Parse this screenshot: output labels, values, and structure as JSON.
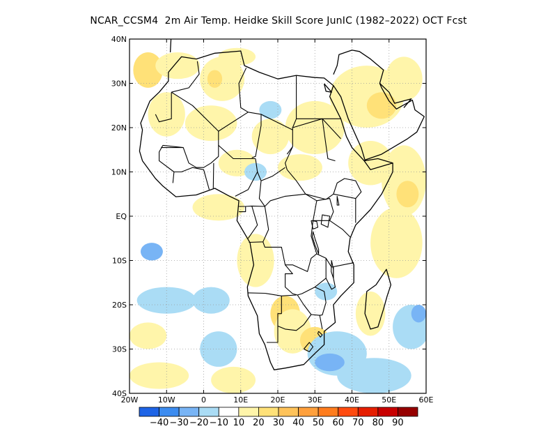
{
  "title": "NCAR_CCSM4  2m Air Temp. Heidke Skill Score JunIC (1982–2022) OCT Fcst",
  "map": {
    "lon_range": [
      -20,
      60
    ],
    "lat_range": [
      -40,
      40
    ],
    "lon_ticks": [
      {
        "value": -20,
        "label": "20W"
      },
      {
        "value": -10,
        "label": "10W"
      },
      {
        "value": 0,
        "label": "0"
      },
      {
        "value": 10,
        "label": "10E"
      },
      {
        "value": 20,
        "label": "20E"
      },
      {
        "value": 30,
        "label": "30E"
      },
      {
        "value": 40,
        "label": "40E"
      },
      {
        "value": 50,
        "label": "50E"
      },
      {
        "value": 60,
        "label": "60E"
      }
    ],
    "lat_ticks": [
      {
        "value": 40,
        "label": "40N"
      },
      {
        "value": 30,
        "label": "30N"
      },
      {
        "value": 20,
        "label": "20N"
      },
      {
        "value": 10,
        "label": "10N"
      },
      {
        "value": 0,
        "label": "EQ"
      },
      {
        "value": -10,
        "label": "10S"
      },
      {
        "value": -20,
        "label": "20S"
      },
      {
        "value": -30,
        "label": "30S"
      },
      {
        "value": -40,
        "label": "40S"
      }
    ],
    "gridlines": "dotted",
    "coastline_color": "#000000"
  },
  "colorbar": {
    "colors": [
      "#1e64e6",
      "#3c8cf0",
      "#78b4f5",
      "#aadcf5",
      "#ffffff",
      "#fff5aa",
      "#ffe178",
      "#ffc35a",
      "#ffa03c",
      "#ff7d1e",
      "#ff4b0f",
      "#e61e00",
      "#c80000",
      "#960000"
    ],
    "labels": [
      "−40",
      "−30",
      "−20",
      "−10",
      "10",
      "20",
      "30",
      "40",
      "50",
      "60",
      "70",
      "80",
      "90"
    ]
  },
  "fields": {
    "positive_light": "#fff5aa",
    "positive_mid": "#ffe178",
    "positive_strong": "#ffc35a",
    "negative_light": "#aadcf5",
    "negative_mid": "#78b4f5"
  },
  "field_patches": [
    {
      "lon": -15,
      "lat": 33,
      "rx": 4,
      "ry": 4,
      "level": "positive_mid"
    },
    {
      "lon": -7,
      "lat": 34,
      "rx": 6,
      "ry": 3,
      "level": "positive_light"
    },
    {
      "lon": 5,
      "lat": 31,
      "rx": 6,
      "ry": 5,
      "level": "positive_light"
    },
    {
      "lon": 3,
      "lat": 31,
      "rx": 2,
      "ry": 2,
      "level": "positive_mid"
    },
    {
      "lon": -10,
      "lat": 23,
      "rx": 5,
      "ry": 5,
      "level": "positive_light"
    },
    {
      "lon": 2,
      "lat": 21,
      "rx": 7,
      "ry": 4,
      "level": "positive_light"
    },
    {
      "lon": 18,
      "lat": 18,
      "rx": 5,
      "ry": 4,
      "level": "positive_light"
    },
    {
      "lon": 30,
      "lat": 20,
      "rx": 8,
      "ry": 6,
      "level": "positive_light"
    },
    {
      "lon": 44,
      "lat": 27,
      "rx": 10,
      "ry": 7,
      "level": "positive_light"
    },
    {
      "lon": 48,
      "lat": 25,
      "rx": 4,
      "ry": 3,
      "level": "positive_mid"
    },
    {
      "lon": 54,
      "lat": 31,
      "rx": 5,
      "ry": 5,
      "level": "positive_light"
    },
    {
      "lon": 45,
      "lat": 12,
      "rx": 6,
      "ry": 5,
      "level": "positive_light"
    },
    {
      "lon": 54,
      "lat": 8,
      "rx": 6,
      "ry": 8,
      "level": "positive_light"
    },
    {
      "lon": 55,
      "lat": 5,
      "rx": 3,
      "ry": 3,
      "level": "positive_mid"
    },
    {
      "lon": 52,
      "lat": -6,
      "rx": 7,
      "ry": 8,
      "level": "positive_light"
    },
    {
      "lon": 9,
      "lat": 12,
      "rx": 5,
      "ry": 3,
      "level": "positive_light"
    },
    {
      "lon": 26,
      "lat": 11,
      "rx": 6,
      "ry": 3,
      "level": "positive_light"
    },
    {
      "lon": 4,
      "lat": 2,
      "rx": 7,
      "ry": 3,
      "level": "positive_light"
    },
    {
      "lon": 14,
      "lat": -10,
      "rx": 5,
      "ry": 6,
      "level": "positive_light"
    },
    {
      "lon": 22,
      "lat": -22,
      "rx": 4,
      "ry": 4,
      "level": "positive_mid"
    },
    {
      "lon": 24,
      "lat": -26,
      "rx": 5,
      "ry": 5,
      "level": "positive_light"
    },
    {
      "lon": 30,
      "lat": -28,
      "rx": 4,
      "ry": 3,
      "level": "positive_mid"
    },
    {
      "lon": -15,
      "lat": -27,
      "rx": 5,
      "ry": 3,
      "level": "positive_light"
    },
    {
      "lon": -12,
      "lat": -36,
      "rx": 8,
      "ry": 3,
      "level": "positive_light"
    },
    {
      "lon": 8,
      "lat": -37,
      "rx": 6,
      "ry": 3,
      "level": "positive_light"
    },
    {
      "lon": 45,
      "lat": -22,
      "rx": 4,
      "ry": 5,
      "level": "positive_light"
    },
    {
      "lon": 9,
      "lat": 36,
      "rx": 5,
      "ry": 2,
      "level": "positive_light"
    },
    {
      "lon": -10,
      "lat": -19,
      "rx": 8,
      "ry": 3,
      "level": "negative_light"
    },
    {
      "lon": -14,
      "lat": -8,
      "rx": 3,
      "ry": 2,
      "level": "negative_mid"
    },
    {
      "lon": 2,
      "lat": -19,
      "rx": 5,
      "ry": 3,
      "level": "negative_light"
    },
    {
      "lon": 4,
      "lat": -30,
      "rx": 5,
      "ry": 4,
      "level": "negative_light"
    },
    {
      "lon": 36,
      "lat": -31,
      "rx": 8,
      "ry": 5,
      "level": "negative_light"
    },
    {
      "lon": 34,
      "lat": -33,
      "rx": 4,
      "ry": 2,
      "level": "negative_mid"
    },
    {
      "lon": 46,
      "lat": -36,
      "rx": 10,
      "ry": 4,
      "level": "negative_light"
    },
    {
      "lon": 56,
      "lat": -25,
      "rx": 5,
      "ry": 5,
      "level": "negative_light"
    },
    {
      "lon": 58,
      "lat": -22,
      "rx": 2,
      "ry": 2,
      "level": "negative_mid"
    },
    {
      "lon": 18,
      "lat": 24,
      "rx": 3,
      "ry": 2,
      "level": "negative_light"
    },
    {
      "lon": 14,
      "lat": 10,
      "rx": 3,
      "ry": 2,
      "level": "negative_light"
    },
    {
      "lon": 33,
      "lat": -17,
      "rx": 3,
      "ry": 2,
      "level": "negative_light"
    }
  ],
  "land_outline": [
    [
      -6,
      36
    ],
    [
      -2,
      35.5
    ],
    [
      3,
      36.8
    ],
    [
      10,
      37.3
    ],
    [
      11,
      34
    ],
    [
      15,
      32.5
    ],
    [
      20,
      31
    ],
    [
      25,
      31.8
    ],
    [
      30,
      31.3
    ],
    [
      32.5,
      31.2
    ],
    [
      35,
      29.5
    ],
    [
      34,
      27
    ],
    [
      37,
      22
    ],
    [
      38.5,
      18
    ],
    [
      40,
      15.5
    ],
    [
      43.3,
      12.5
    ],
    [
      45,
      10.5
    ],
    [
      51,
      12
    ],
    [
      51,
      10
    ],
    [
      48,
      5
    ],
    [
      45,
      1.5
    ],
    [
      41,
      -2
    ],
    [
      39.5,
      -5
    ],
    [
      39,
      -8
    ],
    [
      40.5,
      -11
    ],
    [
      40.5,
      -15
    ],
    [
      37,
      -18
    ],
    [
      35,
      -20
    ],
    [
      35.5,
      -24
    ],
    [
      32.5,
      -26
    ],
    [
      32.5,
      -29
    ],
    [
      30,
      -31
    ],
    [
      27,
      -33.5
    ],
    [
      22,
      -34.3
    ],
    [
      19,
      -34.7
    ],
    [
      18,
      -33
    ],
    [
      16.5,
      -29
    ],
    [
      15,
      -26.5
    ],
    [
      14.5,
      -22.5
    ],
    [
      12,
      -18
    ],
    [
      11.8,
      -16
    ],
    [
      13.5,
      -11
    ],
    [
      12.5,
      -6
    ],
    [
      9,
      -1
    ],
    [
      9.5,
      3.5
    ],
    [
      7,
      4.5
    ],
    [
      3,
      6.3
    ],
    [
      -2,
      4.8
    ],
    [
      -7.5,
      4.4
    ],
    [
      -11,
      6.8
    ],
    [
      -13,
      8.5
    ],
    [
      -16.5,
      12.5
    ],
    [
      -17.3,
      14.7
    ],
    [
      -16.5,
      19.5
    ],
    [
      -17,
      21
    ],
    [
      -14.5,
      26
    ],
    [
      -12,
      28
    ],
    [
      -9.5,
      30.5
    ],
    [
      -9.5,
      32.5
    ],
    [
      -6,
      36
    ]
  ],
  "madagascar": [
    [
      49.3,
      -12
    ],
    [
      50.5,
      -15.5
    ],
    [
      49.5,
      -18
    ],
    [
      48.5,
      -21
    ],
    [
      47,
      -25
    ],
    [
      45,
      -25.5
    ],
    [
      43.5,
      -22
    ],
    [
      44,
      -17
    ],
    [
      46.5,
      -15.5
    ],
    [
      49.3,
      -12
    ]
  ],
  "arabia": [
    [
      35,
      29.5
    ],
    [
      37,
      27
    ],
    [
      39,
      22
    ],
    [
      42.5,
      15.5
    ],
    [
      43.5,
      12.7
    ],
    [
      48,
      14
    ],
    [
      52,
      16
    ],
    [
      55,
      17.5
    ],
    [
      57.5,
      19
    ],
    [
      59.5,
      22.5
    ],
    [
      57,
      24
    ],
    [
      56.3,
      26.2
    ],
    [
      52,
      24.2
    ],
    [
      50,
      26
    ],
    [
      48,
      29
    ],
    [
      47.5,
      30
    ],
    [
      48.5,
      33
    ],
    [
      45,
      35.5
    ],
    [
      42,
      37.2
    ],
    [
      40,
      37.5
    ],
    [
      36.5,
      36.5
    ],
    [
      36,
      34
    ],
    [
      35,
      32
    ]
  ],
  "europe": [
    [
      -9,
      37
    ],
    [
      -8.8,
      40
    ],
    [
      -9,
      43
    ],
    [
      -4,
      43.5
    ],
    [
      -2,
      43.4
    ],
    [
      0,
      40
    ]
  ],
  "borders": [
    [
      [
        -8.7,
        28
      ],
      [
        -4,
        29
      ],
      [
        -1.2,
        32.1
      ],
      [
        -1.7,
        35
      ]
    ],
    [
      [
        -8.7,
        28
      ],
      [
        -8.7,
        22
      ],
      [
        -12,
        21.3
      ],
      [
        -13,
        23
      ]
    ],
    [
      [
        -8.7,
        28
      ],
      [
        -3,
        25
      ],
      [
        4,
        19.2
      ],
      [
        12,
        23.5
      ]
    ],
    [
      [
        9.5,
        30
      ],
      [
        10,
        24.5
      ],
      [
        12,
        23.5
      ]
    ],
    [
      [
        9.5,
        30
      ],
      [
        11.5,
        33.5
      ]
    ],
    [
      [
        25,
        31.8
      ],
      [
        25,
        22
      ],
      [
        36.9,
        22
      ]
    ],
    [
      [
        25,
        22
      ],
      [
        24,
        20
      ],
      [
        24,
        15.7
      ],
      [
        22.5,
        14
      ]
    ],
    [
      [
        12,
        23.5
      ],
      [
        15.5,
        23
      ],
      [
        24,
        19.5
      ]
    ],
    [
      [
        15.5,
        23
      ],
      [
        15.5,
        20.5
      ],
      [
        14,
        13.5
      ],
      [
        13,
        13.2
      ]
    ],
    [
      [
        24,
        15.7
      ],
      [
        22,
        12
      ],
      [
        22.5,
        10.5
      ]
    ],
    [
      [
        22.5,
        10.5
      ],
      [
        25,
        8
      ],
      [
        27.5,
        5
      ],
      [
        33,
        3.8
      ]
    ],
    [
      [
        33,
        3.8
      ],
      [
        35,
        5
      ],
      [
        36,
        7.5
      ],
      [
        38,
        8.5
      ],
      [
        41,
        8
      ],
      [
        42.5,
        5.5
      ],
      [
        41,
        4
      ]
    ],
    [
      [
        24,
        20
      ],
      [
        32,
        22
      ],
      [
        37,
        17.5
      ]
    ],
    [
      [
        32,
        22
      ],
      [
        33.5,
        13
      ],
      [
        35.5,
        12.5
      ]
    ],
    [
      [
        -11,
        16
      ],
      [
        -5.5,
        15.5
      ],
      [
        -4,
        12
      ],
      [
        -2,
        11
      ],
      [
        0,
        11
      ],
      [
        2,
        12
      ],
      [
        4,
        13.5
      ],
      [
        4,
        16
      ],
      [
        8,
        13
      ],
      [
        14,
        13
      ]
    ],
    [
      [
        4,
        16
      ],
      [
        4,
        19.2
      ]
    ],
    [
      [
        -11,
        16
      ],
      [
        -12,
        14.5
      ],
      [
        -12,
        12.5
      ],
      [
        -8,
        10
      ]
    ],
    [
      [
        -8,
        10
      ],
      [
        -6,
        10
      ],
      [
        -3,
        11
      ],
      [
        0,
        10.5
      ],
      [
        1.5,
        6
      ]
    ],
    [
      [
        -5.5,
        15.5
      ],
      [
        -11.5,
        15.5
      ]
    ],
    [
      [
        -8,
        10
      ],
      [
        -8.3,
        7.5
      ]
    ],
    [
      [
        2.6,
        6.3
      ],
      [
        2.7,
        12
      ]
    ],
    [
      [
        8.5,
        4.5
      ],
      [
        12,
        6
      ],
      [
        14.5,
        10
      ],
      [
        14,
        13
      ]
    ],
    [
      [
        14.5,
        10
      ],
      [
        15.5,
        8
      ],
      [
        18.5,
        9
      ],
      [
        22,
        11
      ]
    ],
    [
      [
        15.5,
        8
      ],
      [
        15,
        4
      ],
      [
        16.5,
        2.2
      ],
      [
        18,
        3.5
      ],
      [
        22,
        4.5
      ],
      [
        27.5,
        5
      ]
    ],
    [
      [
        9.5,
        2.2
      ],
      [
        11.3,
        2.2
      ],
      [
        11.3,
        1
      ],
      [
        9.5,
        1
      ]
    ],
    [
      [
        11.3,
        2.2
      ],
      [
        13,
        2.3
      ],
      [
        16.5,
        2.2
      ]
    ],
    [
      [
        13,
        2.3
      ],
      [
        14.5,
        -2
      ],
      [
        12,
        -5
      ]
    ],
    [
      [
        16.5,
        2.2
      ],
      [
        17.5,
        -3
      ],
      [
        16,
        -5.8
      ],
      [
        12.2,
        -5.9
      ]
    ],
    [
      [
        16,
        -5.8
      ],
      [
        16.5,
        -7
      ],
      [
        21,
        -7
      ],
      [
        22,
        -11
      ],
      [
        24,
        -11
      ],
      [
        28,
        -12.5
      ],
      [
        29,
        -9.5
      ],
      [
        30.5,
        -8.5
      ]
    ],
    [
      [
        27.5,
        5
      ],
      [
        30.5,
        3.5
      ],
      [
        29.5,
        -1
      ],
      [
        29,
        -4.5
      ],
      [
        30.5,
        -8.5
      ]
    ],
    [
      [
        30.5,
        3.5
      ],
      [
        34,
        4
      ],
      [
        35,
        1
      ],
      [
        34,
        -1
      ],
      [
        29.5,
        -1
      ]
    ],
    [
      [
        34,
        -1
      ],
      [
        37.5,
        -3
      ],
      [
        39.5,
        -4.7
      ]
    ],
    [
      [
        35,
        5
      ],
      [
        41,
        4
      ],
      [
        41,
        -1.5
      ]
    ],
    [
      [
        30.5,
        -8.5
      ],
      [
        33,
        -9.5
      ],
      [
        34.5,
        -11.5
      ],
      [
        40.5,
        -10.5
      ]
    ],
    [
      [
        12,
        -17.3
      ],
      [
        16.5,
        -17.4
      ],
      [
        21,
        -18
      ],
      [
        25,
        -17.8
      ]
    ],
    [
      [
        21,
        -18
      ],
      [
        21,
        -22
      ],
      [
        20,
        -22
      ],
      [
        20,
        -24.8
      ],
      [
        20,
        -28.5
      ],
      [
        17,
        -28.5
      ]
    ],
    [
      [
        22,
        -11
      ],
      [
        24,
        -13
      ],
      [
        22,
        -13
      ],
      [
        22,
        -16
      ],
      [
        24,
        -17.5
      ],
      [
        25.3,
        -17.8
      ]
    ],
    [
      [
        25.3,
        -17.8
      ],
      [
        26.5,
        -17.5
      ],
      [
        30,
        -16
      ],
      [
        33,
        -14
      ],
      [
        33,
        -9.5
      ]
    ],
    [
      [
        30,
        -16
      ],
      [
        32.5,
        -17
      ],
      [
        33,
        -19.5
      ],
      [
        32,
        -22.3
      ],
      [
        31.3,
        -22.4
      ]
    ],
    [
      [
        25.3,
        -17.8
      ],
      [
        27,
        -20
      ],
      [
        29,
        -22.2
      ],
      [
        31.3,
        -22.4
      ],
      [
        32,
        -25.5
      ]
    ],
    [
      [
        20,
        -24.8
      ],
      [
        22,
        -25.5
      ],
      [
        25,
        -25.8
      ],
      [
        27,
        -24.5
      ],
      [
        29,
        -22.2
      ]
    ],
    [
      [
        35,
        -11.5
      ],
      [
        35,
        -14
      ],
      [
        35.5,
        -16
      ],
      [
        34.5,
        -16.5
      ],
      [
        33,
        -14
      ]
    ],
    [
      [
        27,
        -30
      ],
      [
        28.5,
        -28.5
      ],
      [
        29.5,
        -29.5
      ],
      [
        28.5,
        -30.6
      ],
      [
        27,
        -30
      ]
    ],
    [
      [
        31,
        -26
      ],
      [
        32,
        -26.8
      ],
      [
        31.5,
        -27.3
      ],
      [
        30.8,
        -26.5
      ],
      [
        31,
        -26
      ]
    ],
    [
      [
        29,
        -1
      ],
      [
        30.5,
        -1.2
      ],
      [
        30.8,
        -2.5
      ],
      [
        29.5,
        -2.9
      ],
      [
        29,
        -1
      ]
    ]
  ],
  "lakes": [
    [
      [
        32,
        0.3
      ],
      [
        34,
        0
      ],
      [
        33.5,
        -2.5
      ],
      [
        31.7,
        -1.8
      ],
      [
        32,
        0.3
      ]
    ],
    [
      [
        29.5,
        -3.5
      ],
      [
        30,
        -5
      ],
      [
        31,
        -7.5
      ],
      [
        31,
        -8.5
      ],
      [
        30,
        -6.5
      ],
      [
        29.3,
        -4.5
      ],
      [
        29.5,
        -3.5
      ]
    ],
    [
      [
        34.5,
        -10
      ],
      [
        35,
        -12
      ],
      [
        35,
        -14
      ],
      [
        34.4,
        -12.5
      ],
      [
        34.5,
        -10
      ]
    ],
    [
      [
        36,
        4.5
      ],
      [
        36.5,
        2.5
      ],
      [
        36,
        2.5
      ],
      [
        36,
        4.5
      ]
    ]
  ],
  "gulfs": [
    [
      [
        32.5,
        29.9
      ],
      [
        34.5,
        28
      ],
      [
        33,
        28.2
      ],
      [
        32.5,
        29.9
      ]
    ],
    [
      [
        47.5,
        30
      ],
      [
        50,
        28
      ],
      [
        51.5,
        25.5
      ],
      [
        56,
        26.5
      ],
      [
        54,
        24.5
      ]
    ],
    [
      [
        43.3,
        12.5
      ],
      [
        47,
        13
      ],
      [
        51,
        12
      ]
    ]
  ]
}
